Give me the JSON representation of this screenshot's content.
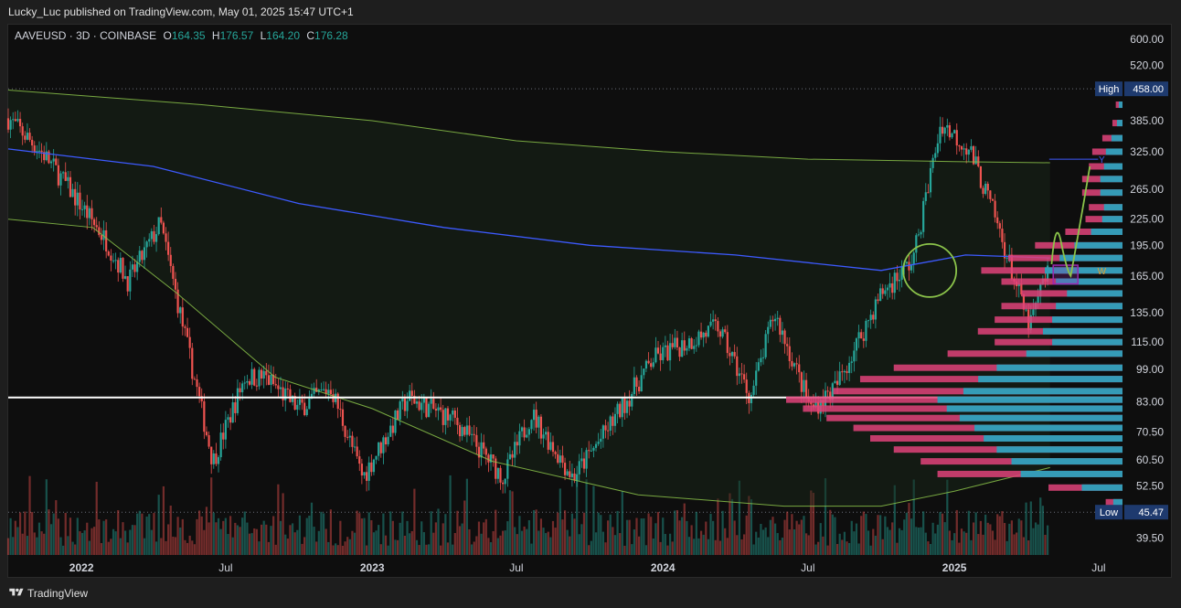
{
  "header": {
    "published": "Lucky_Luc published on TradingView.com, May 01, 2025 15:47 UTC+1"
  },
  "symbol_bar": {
    "symbol": "AAVEUSD · 3D · COINBASE",
    "o_label": "O",
    "o": "164.35",
    "h_label": "H",
    "h": "176.57",
    "l_label": "L",
    "l": "164.20",
    "c_label": "C",
    "c": "176.28"
  },
  "footer": {
    "brand": "TradingView"
  },
  "colors": {
    "up": "#26a69a",
    "down": "#ef5350",
    "ma_blue": "#3d5afe",
    "ma_green": "#8bc34a",
    "profile_blue": "#26a6c0",
    "profile_pink": "#e0437a",
    "support_line": "#ffffff",
    "highlight": "#9c27b0"
  },
  "chart_data": {
    "type": "candlestick",
    "title": "",
    "y_scale": "log",
    "y_ticks": [
      "600.00",
      "520.00",
      "385.00",
      "325.00",
      "265.00",
      "225.00",
      "195.00",
      "165.00",
      "135.00",
      "115.00",
      "99.00",
      "83.00",
      "70.50",
      "60.50",
      "52.50",
      "39.50"
    ],
    "x_ticks": [
      "2022",
      "Jul",
      "2023",
      "Jul",
      "2024",
      "Jul",
      "2025",
      "Jul"
    ],
    "x_range": [
      "2021-10-01",
      "2025-07-31"
    ],
    "ylim": [
      36,
      650
    ],
    "high": {
      "label": "High",
      "value": "458.00"
    },
    "low": {
      "label": "Low",
      "value": "45.47"
    },
    "support_level": 85,
    "price_path": [
      {
        "date": "2021-10-01",
        "price": 390
      },
      {
        "date": "2021-11-15",
        "price": 320
      },
      {
        "date": "2021-12-20",
        "price": 260
      },
      {
        "date": "2022-02-01",
        "price": 200
      },
      {
        "date": "2022-03-01",
        "price": 160
      },
      {
        "date": "2022-04-10",
        "price": 220
      },
      {
        "date": "2022-05-15",
        "price": 110
      },
      {
        "date": "2022-06-15",
        "price": 60
      },
      {
        "date": "2022-07-25",
        "price": 95
      },
      {
        "date": "2022-08-20",
        "price": 95
      },
      {
        "date": "2022-09-30",
        "price": 80
      },
      {
        "date": "2022-11-10",
        "price": 90
      },
      {
        "date": "2022-12-20",
        "price": 55
      },
      {
        "date": "2023-02-15",
        "price": 85
      },
      {
        "date": "2023-04-15",
        "price": 75
      },
      {
        "date": "2023-06-15",
        "price": 55
      },
      {
        "date": "2023-07-20",
        "price": 78
      },
      {
        "date": "2023-09-10",
        "price": 55
      },
      {
        "date": "2023-10-20",
        "price": 70
      },
      {
        "date": "2023-12-20",
        "price": 105
      },
      {
        "date": "2024-03-10",
        "price": 125
      },
      {
        "date": "2024-04-20",
        "price": 85
      },
      {
        "date": "2024-05-20",
        "price": 135
      },
      {
        "date": "2024-07-05",
        "price": 80
      },
      {
        "date": "2024-08-05",
        "price": 90
      },
      {
        "date": "2024-10-01",
        "price": 150
      },
      {
        "date": "2024-11-10",
        "price": 180
      },
      {
        "date": "2024-12-15",
        "price": 380
      },
      {
        "date": "2025-01-20",
        "price": 330
      },
      {
        "date": "2025-02-20",
        "price": 230
      },
      {
        "date": "2025-04-05",
        "price": 125
      },
      {
        "date": "2025-04-30",
        "price": 176
      }
    ],
    "ma_blue": [
      {
        "date": "2021-10-01",
        "price": 330
      },
      {
        "date": "2022-04-01",
        "price": 300
      },
      {
        "date": "2022-10-01",
        "price": 245
      },
      {
        "date": "2023-04-01",
        "price": 215
      },
      {
        "date": "2023-10-01",
        "price": 195
      },
      {
        "date": "2024-04-01",
        "price": 185
      },
      {
        "date": "2024-10-01",
        "price": 170
      },
      {
        "date": "2025-01-15",
        "price": 185
      },
      {
        "date": "2025-05-01",
        "price": 182
      }
    ],
    "ma_green_upper": [
      {
        "date": "2021-10-01",
        "price": 455
      },
      {
        "date": "2022-06-01",
        "price": 420
      },
      {
        "date": "2023-01-01",
        "price": 385
      },
      {
        "date": "2023-07-01",
        "price": 345
      },
      {
        "date": "2024-01-01",
        "price": 325
      },
      {
        "date": "2024-07-01",
        "price": 312
      },
      {
        "date": "2025-01-01",
        "price": 308
      },
      {
        "date": "2025-05-01",
        "price": 306
      }
    ],
    "ma_green_lower": [
      {
        "date": "2021-10-01",
        "price": 225
      },
      {
        "date": "2022-01-15",
        "price": 215
      },
      {
        "date": "2022-05-01",
        "price": 150
      },
      {
        "date": "2022-09-01",
        "price": 95
      },
      {
        "date": "2023-01-01",
        "price": 80
      },
      {
        "date": "2023-06-01",
        "price": 60
      },
      {
        "date": "2023-12-01",
        "price": 50
      },
      {
        "date": "2024-06-01",
        "price": 47
      },
      {
        "date": "2024-10-01",
        "price": 47
      },
      {
        "date": "2025-01-01",
        "price": 51
      },
      {
        "date": "2025-05-01",
        "price": 58
      }
    ],
    "projection": [
      {
        "date": "2025-05-03",
        "price": 176
      },
      {
        "date": "2025-05-15",
        "price": 198
      },
      {
        "date": "2025-05-27",
        "price": 165
      },
      {
        "date": "2025-06-20",
        "price": 300
      }
    ],
    "level_labels": [
      {
        "text": "Y",
        "date": "2025-07-05",
        "price": 312
      },
      {
        "text": "W",
        "date": "2025-07-05",
        "price": 170
      }
    ],
    "circle": {
      "date": "2024-12-01",
      "price": 170
    },
    "box": {
      "from": "2025-05-05",
      "to": "2025-06-05",
      "top": 175,
      "bottom": 158
    },
    "volume_profile": [
      {
        "price": 420,
        "vol": 0.02
      },
      {
        "price": 380,
        "vol": 0.03
      },
      {
        "price": 350,
        "vol": 0.06
      },
      {
        "price": 325,
        "vol": 0.09
      },
      {
        "price": 300,
        "vol": 0.1
      },
      {
        "price": 280,
        "vol": 0.12
      },
      {
        "price": 260,
        "vol": 0.12
      },
      {
        "price": 240,
        "vol": 0.1
      },
      {
        "price": 225,
        "vol": 0.11
      },
      {
        "price": 210,
        "vol": 0.17
      },
      {
        "price": 195,
        "vol": 0.26
      },
      {
        "price": 182,
        "vol": 0.34
      },
      {
        "price": 170,
        "vol": 0.42
      },
      {
        "price": 160,
        "vol": 0.36
      },
      {
        "price": 150,
        "vol": 0.3
      },
      {
        "price": 140,
        "vol": 0.36
      },
      {
        "price": 130,
        "vol": 0.38
      },
      {
        "price": 122,
        "vol": 0.43
      },
      {
        "price": 115,
        "vol": 0.38
      },
      {
        "price": 108,
        "vol": 0.52
      },
      {
        "price": 100,
        "vol": 0.68
      },
      {
        "price": 94,
        "vol": 0.78
      },
      {
        "price": 88,
        "vol": 0.86
      },
      {
        "price": 84,
        "vol": 1.0
      },
      {
        "price": 80,
        "vol": 0.95
      },
      {
        "price": 76,
        "vol": 0.88
      },
      {
        "price": 72,
        "vol": 0.8
      },
      {
        "price": 68,
        "vol": 0.75
      },
      {
        "price": 64,
        "vol": 0.68
      },
      {
        "price": 60,
        "vol": 0.6
      },
      {
        "price": 56,
        "vol": 0.55
      },
      {
        "price": 52,
        "vol": 0.22
      },
      {
        "price": 48,
        "vol": 0.05
      }
    ]
  }
}
